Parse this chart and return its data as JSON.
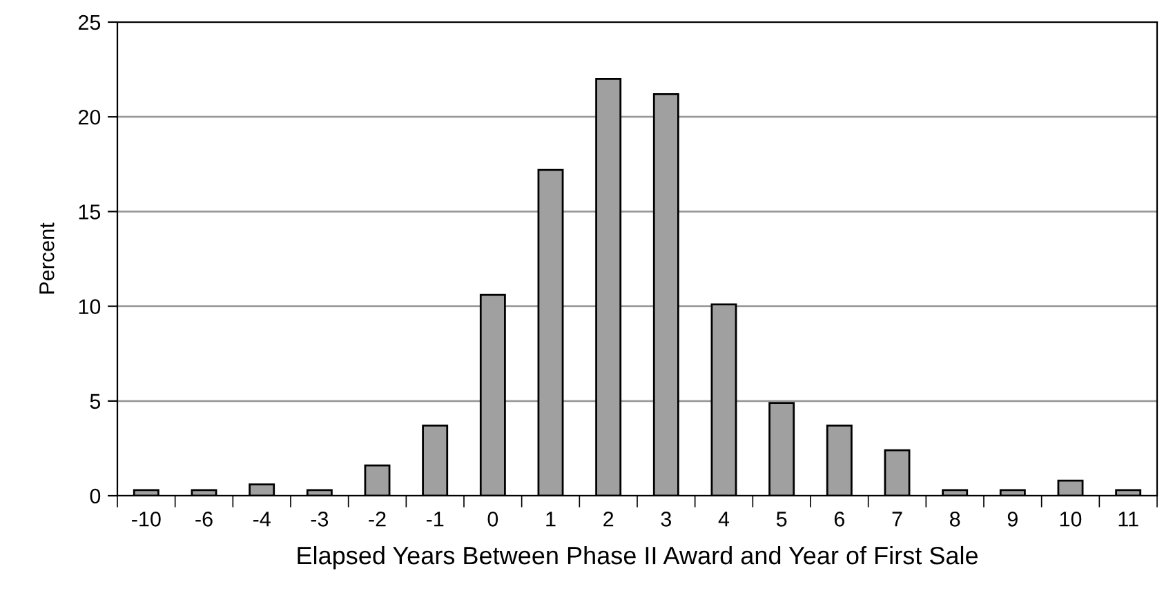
{
  "chart_data": {
    "type": "bar",
    "xlabel": "Elapsed Years Between Phase II Award and Year of First Sale",
    "ylabel": "Percent",
    "categories": [
      "-10",
      "-6",
      "-4",
      "-3",
      "-2",
      "-1",
      "0",
      "1",
      "2",
      "3",
      "4",
      "5",
      "6",
      "7",
      "8",
      "9",
      "10",
      "11"
    ],
    "values": [
      0.3,
      0.3,
      0.6,
      0.3,
      1.6,
      3.7,
      10.6,
      17.2,
      22,
      21.2,
      10.1,
      4.9,
      3.7,
      2.4,
      0.3,
      0.3,
      0.8,
      0.3
    ],
    "color": "#a0a0a0",
    "ylim": [
      0,
      25
    ],
    "yticks": [
      0,
      5,
      10,
      15,
      20,
      25
    ],
    "grid": "y",
    "legend": false
  }
}
